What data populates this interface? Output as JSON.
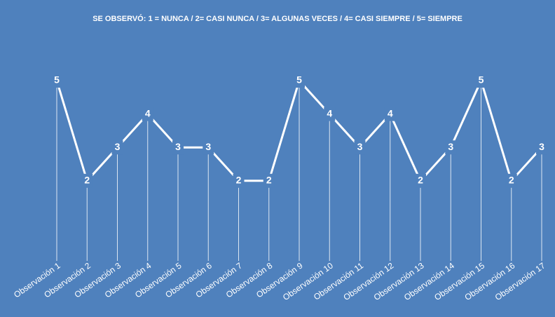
{
  "chart_data": {
    "type": "line",
    "title": "SE OBSERVÓ: 1 =  NUNCA / 2= CASI NUNCA / 3= ALGUNAS VECES / 4= CASI SIEMPRE / 5= SIEMPRE",
    "categories": [
      "Observación 1",
      "Observación 2",
      "Observación 3",
      "Observación 4",
      "Observación 5",
      "Observación 6",
      "Observación 7",
      "Observación 8",
      "Observación 9",
      "Observación 10",
      "Observación 11",
      "Observación 12",
      "Observación 13",
      "Observación 14",
      "Observación 15",
      "Observación 16",
      "Observación 17"
    ],
    "values": [
      5,
      2,
      3,
      4,
      3,
      3,
      2,
      2,
      5,
      4,
      3,
      4,
      2,
      3,
      5,
      2,
      3
    ],
    "color": "#ffffff",
    "ylim": [
      0,
      5
    ]
  }
}
